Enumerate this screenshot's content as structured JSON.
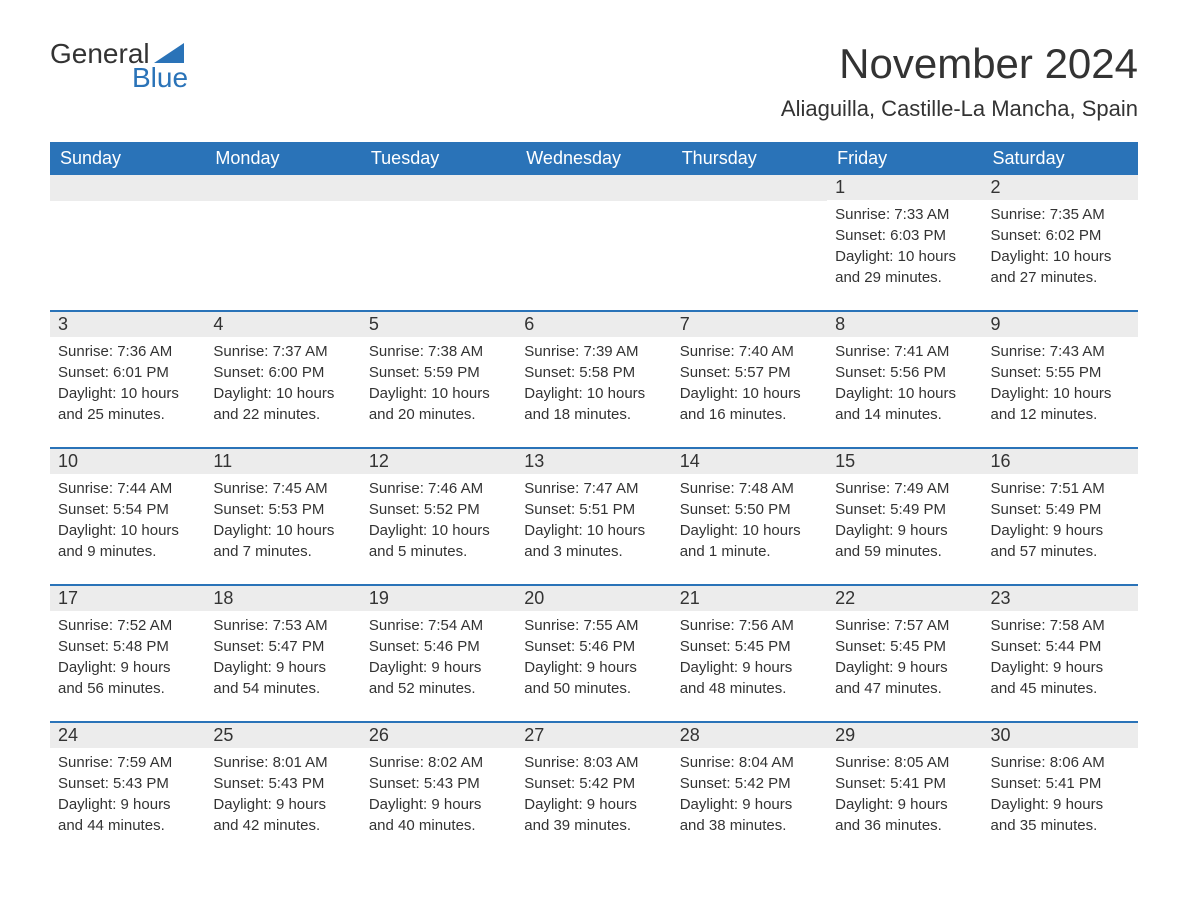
{
  "logo": {
    "text_general": "General",
    "text_blue": "Blue"
  },
  "title": "November 2024",
  "location": "Aliaguilla, Castille-La Mancha, Spain",
  "colors": {
    "header_bg": "#2a73b8",
    "header_text": "#ffffff",
    "date_bg": "#ececec",
    "body_text": "#333333",
    "logo_blue": "#2a73b8",
    "page_bg": "#ffffff",
    "week_border": "#2a73b8"
  },
  "typography": {
    "title_fontsize": 42,
    "location_fontsize": 22,
    "dayheader_fontsize": 18,
    "date_fontsize": 18,
    "body_fontsize": 15,
    "logo_fontsize": 28
  },
  "day_names": [
    "Sunday",
    "Monday",
    "Tuesday",
    "Wednesday",
    "Thursday",
    "Friday",
    "Saturday"
  ],
  "weeks": [
    [
      null,
      null,
      null,
      null,
      null,
      {
        "date": "1",
        "sunrise": "Sunrise: 7:33 AM",
        "sunset": "Sunset: 6:03 PM",
        "daylight1": "Daylight: 10 hours",
        "daylight2": "and 29 minutes."
      },
      {
        "date": "2",
        "sunrise": "Sunrise: 7:35 AM",
        "sunset": "Sunset: 6:02 PM",
        "daylight1": "Daylight: 10 hours",
        "daylight2": "and 27 minutes."
      }
    ],
    [
      {
        "date": "3",
        "sunrise": "Sunrise: 7:36 AM",
        "sunset": "Sunset: 6:01 PM",
        "daylight1": "Daylight: 10 hours",
        "daylight2": "and 25 minutes."
      },
      {
        "date": "4",
        "sunrise": "Sunrise: 7:37 AM",
        "sunset": "Sunset: 6:00 PM",
        "daylight1": "Daylight: 10 hours",
        "daylight2": "and 22 minutes."
      },
      {
        "date": "5",
        "sunrise": "Sunrise: 7:38 AM",
        "sunset": "Sunset: 5:59 PM",
        "daylight1": "Daylight: 10 hours",
        "daylight2": "and 20 minutes."
      },
      {
        "date": "6",
        "sunrise": "Sunrise: 7:39 AM",
        "sunset": "Sunset: 5:58 PM",
        "daylight1": "Daylight: 10 hours",
        "daylight2": "and 18 minutes."
      },
      {
        "date": "7",
        "sunrise": "Sunrise: 7:40 AM",
        "sunset": "Sunset: 5:57 PM",
        "daylight1": "Daylight: 10 hours",
        "daylight2": "and 16 minutes."
      },
      {
        "date": "8",
        "sunrise": "Sunrise: 7:41 AM",
        "sunset": "Sunset: 5:56 PM",
        "daylight1": "Daylight: 10 hours",
        "daylight2": "and 14 minutes."
      },
      {
        "date": "9",
        "sunrise": "Sunrise: 7:43 AM",
        "sunset": "Sunset: 5:55 PM",
        "daylight1": "Daylight: 10 hours",
        "daylight2": "and 12 minutes."
      }
    ],
    [
      {
        "date": "10",
        "sunrise": "Sunrise: 7:44 AM",
        "sunset": "Sunset: 5:54 PM",
        "daylight1": "Daylight: 10 hours",
        "daylight2": "and 9 minutes."
      },
      {
        "date": "11",
        "sunrise": "Sunrise: 7:45 AM",
        "sunset": "Sunset: 5:53 PM",
        "daylight1": "Daylight: 10 hours",
        "daylight2": "and 7 minutes."
      },
      {
        "date": "12",
        "sunrise": "Sunrise: 7:46 AM",
        "sunset": "Sunset: 5:52 PM",
        "daylight1": "Daylight: 10 hours",
        "daylight2": "and 5 minutes."
      },
      {
        "date": "13",
        "sunrise": "Sunrise: 7:47 AM",
        "sunset": "Sunset: 5:51 PM",
        "daylight1": "Daylight: 10 hours",
        "daylight2": "and 3 minutes."
      },
      {
        "date": "14",
        "sunrise": "Sunrise: 7:48 AM",
        "sunset": "Sunset: 5:50 PM",
        "daylight1": "Daylight: 10 hours",
        "daylight2": "and 1 minute."
      },
      {
        "date": "15",
        "sunrise": "Sunrise: 7:49 AM",
        "sunset": "Sunset: 5:49 PM",
        "daylight1": "Daylight: 9 hours",
        "daylight2": "and 59 minutes."
      },
      {
        "date": "16",
        "sunrise": "Sunrise: 7:51 AM",
        "sunset": "Sunset: 5:49 PM",
        "daylight1": "Daylight: 9 hours",
        "daylight2": "and 57 minutes."
      }
    ],
    [
      {
        "date": "17",
        "sunrise": "Sunrise: 7:52 AM",
        "sunset": "Sunset: 5:48 PM",
        "daylight1": "Daylight: 9 hours",
        "daylight2": "and 56 minutes."
      },
      {
        "date": "18",
        "sunrise": "Sunrise: 7:53 AM",
        "sunset": "Sunset: 5:47 PM",
        "daylight1": "Daylight: 9 hours",
        "daylight2": "and 54 minutes."
      },
      {
        "date": "19",
        "sunrise": "Sunrise: 7:54 AM",
        "sunset": "Sunset: 5:46 PM",
        "daylight1": "Daylight: 9 hours",
        "daylight2": "and 52 minutes."
      },
      {
        "date": "20",
        "sunrise": "Sunrise: 7:55 AM",
        "sunset": "Sunset: 5:46 PM",
        "daylight1": "Daylight: 9 hours",
        "daylight2": "and 50 minutes."
      },
      {
        "date": "21",
        "sunrise": "Sunrise: 7:56 AM",
        "sunset": "Sunset: 5:45 PM",
        "daylight1": "Daylight: 9 hours",
        "daylight2": "and 48 minutes."
      },
      {
        "date": "22",
        "sunrise": "Sunrise: 7:57 AM",
        "sunset": "Sunset: 5:45 PM",
        "daylight1": "Daylight: 9 hours",
        "daylight2": "and 47 minutes."
      },
      {
        "date": "23",
        "sunrise": "Sunrise: 7:58 AM",
        "sunset": "Sunset: 5:44 PM",
        "daylight1": "Daylight: 9 hours",
        "daylight2": "and 45 minutes."
      }
    ],
    [
      {
        "date": "24",
        "sunrise": "Sunrise: 7:59 AM",
        "sunset": "Sunset: 5:43 PM",
        "daylight1": "Daylight: 9 hours",
        "daylight2": "and 44 minutes."
      },
      {
        "date": "25",
        "sunrise": "Sunrise: 8:01 AM",
        "sunset": "Sunset: 5:43 PM",
        "daylight1": "Daylight: 9 hours",
        "daylight2": "and 42 minutes."
      },
      {
        "date": "26",
        "sunrise": "Sunrise: 8:02 AM",
        "sunset": "Sunset: 5:43 PM",
        "daylight1": "Daylight: 9 hours",
        "daylight2": "and 40 minutes."
      },
      {
        "date": "27",
        "sunrise": "Sunrise: 8:03 AM",
        "sunset": "Sunset: 5:42 PM",
        "daylight1": "Daylight: 9 hours",
        "daylight2": "and 39 minutes."
      },
      {
        "date": "28",
        "sunrise": "Sunrise: 8:04 AM",
        "sunset": "Sunset: 5:42 PM",
        "daylight1": "Daylight: 9 hours",
        "daylight2": "and 38 minutes."
      },
      {
        "date": "29",
        "sunrise": "Sunrise: 8:05 AM",
        "sunset": "Sunset: 5:41 PM",
        "daylight1": "Daylight: 9 hours",
        "daylight2": "and 36 minutes."
      },
      {
        "date": "30",
        "sunrise": "Sunrise: 8:06 AM",
        "sunset": "Sunset: 5:41 PM",
        "daylight1": "Daylight: 9 hours",
        "daylight2": "and 35 minutes."
      }
    ]
  ]
}
